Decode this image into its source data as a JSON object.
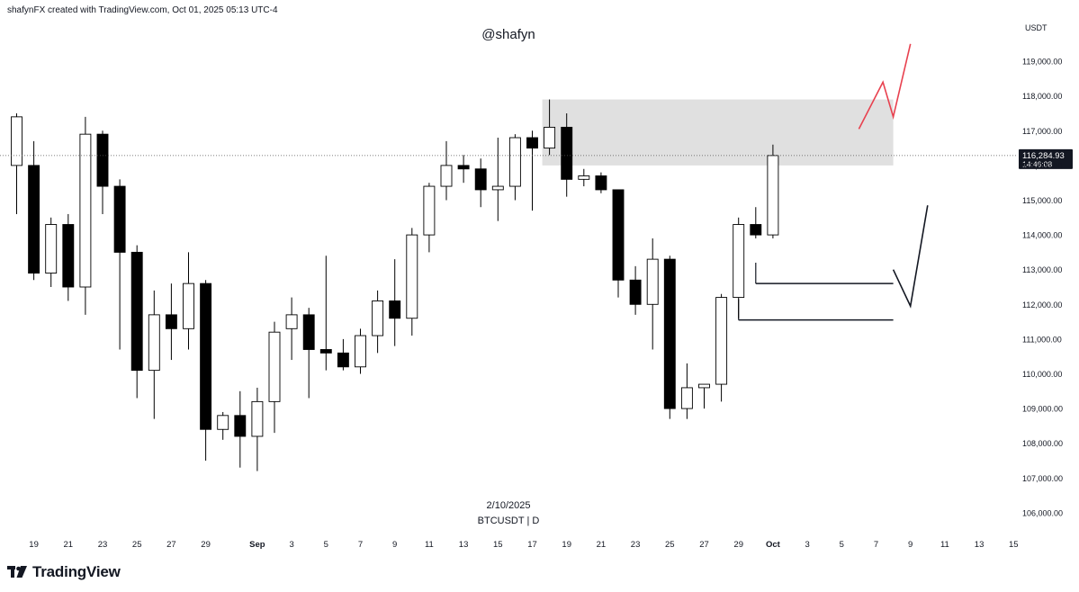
{
  "header": {
    "attribution": "shafynFX created with TradingView.com, Oct 01, 2025 05:13 UTC-4"
  },
  "watermark": "@shafyn",
  "footer": {
    "date_label": "2/10/2025",
    "symbol_label": "BTCUSDT | D"
  },
  "brand": {
    "name": "TradingView",
    "logo_icon": "tradingview-logo-icon"
  },
  "colors": {
    "up_body": "#ffffff",
    "down_body": "#000000",
    "wick": "#000000",
    "zone": "#e0e0e0",
    "projection_up": "#e8414f",
    "projection_down": "#131722",
    "price_label_bg": "#131722",
    "price_label_text": "#ffffff"
  },
  "chart_data": {
    "type": "candlestick",
    "symbol": "BTCUSDT",
    "timeframe": "D",
    "currency_label": "USDT",
    "y_axis": {
      "min": 105500,
      "max": 120500,
      "tick_values": [
        106000,
        107000,
        108000,
        109000,
        110000,
        111000,
        112000,
        113000,
        114000,
        115000,
        116000,
        117000,
        118000,
        119000
      ],
      "tick_labels": [
        "106,000.00",
        "107,000.00",
        "108,000.00",
        "109,000.00",
        "110,000.00",
        "111,000.00",
        "112,000.00",
        "113,000.00",
        "114,000.00",
        "115,000.00",
        "116,000.00",
        "117,000.00",
        "118,000.00",
        "119,000.00"
      ]
    },
    "x_axis": {
      "start_date": "2025-08-18",
      "end_date": "2025-10-15",
      "ticks": [
        {
          "date": "2025-08-19",
          "label": "19"
        },
        {
          "date": "2025-08-21",
          "label": "21"
        },
        {
          "date": "2025-08-23",
          "label": "23"
        },
        {
          "date": "2025-08-25",
          "label": "25"
        },
        {
          "date": "2025-08-27",
          "label": "27"
        },
        {
          "date": "2025-08-29",
          "label": "29"
        },
        {
          "date": "2025-09-01",
          "label": "Sep",
          "bold": true
        },
        {
          "date": "2025-09-03",
          "label": "3"
        },
        {
          "date": "2025-09-05",
          "label": "5"
        },
        {
          "date": "2025-09-07",
          "label": "7"
        },
        {
          "date": "2025-09-09",
          "label": "9"
        },
        {
          "date": "2025-09-11",
          "label": "11"
        },
        {
          "date": "2025-09-13",
          "label": "13"
        },
        {
          "date": "2025-09-15",
          "label": "15"
        },
        {
          "date": "2025-09-17",
          "label": "17"
        },
        {
          "date": "2025-09-19",
          "label": "19"
        },
        {
          "date": "2025-09-21",
          "label": "21"
        },
        {
          "date": "2025-09-23",
          "label": "23"
        },
        {
          "date": "2025-09-25",
          "label": "25"
        },
        {
          "date": "2025-09-27",
          "label": "27"
        },
        {
          "date": "2025-09-29",
          "label": "29"
        },
        {
          "date": "2025-10-01",
          "label": "Oct",
          "bold": true
        },
        {
          "date": "2025-10-03",
          "label": "3"
        },
        {
          "date": "2025-10-05",
          "label": "5"
        },
        {
          "date": "2025-10-07",
          "label": "7"
        },
        {
          "date": "2025-10-09",
          "label": "9"
        },
        {
          "date": "2025-10-11",
          "label": "11"
        },
        {
          "date": "2025-10-13",
          "label": "13"
        },
        {
          "date": "2025-10-15",
          "label": "15"
        }
      ]
    },
    "candles": [
      {
        "date": "2025-08-18",
        "open": 116000,
        "high": 117500,
        "low": 114600,
        "close": 117400
      },
      {
        "date": "2025-08-19",
        "open": 116000,
        "high": 116700,
        "low": 112700,
        "close": 112900
      },
      {
        "date": "2025-08-20",
        "open": 112900,
        "high": 114500,
        "low": 112500,
        "close": 114300
      },
      {
        "date": "2025-08-21",
        "open": 114300,
        "high": 114600,
        "low": 112100,
        "close": 112500
      },
      {
        "date": "2025-08-22",
        "open": 112500,
        "high": 117400,
        "low": 111700,
        "close": 116900
      },
      {
        "date": "2025-08-23",
        "open": 116900,
        "high": 117000,
        "low": 114600,
        "close": 115400
      },
      {
        "date": "2025-08-24",
        "open": 115400,
        "high": 115600,
        "low": 110700,
        "close": 113500
      },
      {
        "date": "2025-08-25",
        "open": 113500,
        "high": 113700,
        "low": 109300,
        "close": 110100
      },
      {
        "date": "2025-08-26",
        "open": 110100,
        "high": 112400,
        "low": 108700,
        "close": 111700
      },
      {
        "date": "2025-08-27",
        "open": 111700,
        "high": 112600,
        "low": 110400,
        "close": 111300
      },
      {
        "date": "2025-08-28",
        "open": 111300,
        "high": 113500,
        "low": 110700,
        "close": 112600
      },
      {
        "date": "2025-08-29",
        "open": 112600,
        "high": 112700,
        "low": 107500,
        "close": 108400
      },
      {
        "date": "2025-08-30",
        "open": 108400,
        "high": 108900,
        "low": 108100,
        "close": 108800
      },
      {
        "date": "2025-08-31",
        "open": 108800,
        "high": 109500,
        "low": 107300,
        "close": 108200
      },
      {
        "date": "2025-09-01",
        "open": 108200,
        "high": 109600,
        "low": 107200,
        "close": 109200
      },
      {
        "date": "2025-09-02",
        "open": 109200,
        "high": 111500,
        "low": 108300,
        "close": 111200
      },
      {
        "date": "2025-09-03",
        "open": 111300,
        "high": 112200,
        "low": 110400,
        "close": 111700
      },
      {
        "date": "2025-09-04",
        "open": 111700,
        "high": 111900,
        "low": 109300,
        "close": 110700
      },
      {
        "date": "2025-09-05",
        "open": 110700,
        "high": 113400,
        "low": 110100,
        "close": 110600
      },
      {
        "date": "2025-09-06",
        "open": 110600,
        "high": 111000,
        "low": 110100,
        "close": 110200
      },
      {
        "date": "2025-09-07",
        "open": 110200,
        "high": 111300,
        "low": 110000,
        "close": 111100
      },
      {
        "date": "2025-09-08",
        "open": 111100,
        "high": 112400,
        "low": 110600,
        "close": 112100
      },
      {
        "date": "2025-09-09",
        "open": 112100,
        "high": 113300,
        "low": 110800,
        "close": 111600
      },
      {
        "date": "2025-09-10",
        "open": 111600,
        "high": 114200,
        "low": 111100,
        "close": 114000
      },
      {
        "date": "2025-09-11",
        "open": 114000,
        "high": 115500,
        "low": 113500,
        "close": 115400
      },
      {
        "date": "2025-09-12",
        "open": 115400,
        "high": 116700,
        "low": 115000,
        "close": 116000
      },
      {
        "date": "2025-09-13",
        "open": 116000,
        "high": 116300,
        "low": 115500,
        "close": 115900
      },
      {
        "date": "2025-09-14",
        "open": 115900,
        "high": 116200,
        "low": 114800,
        "close": 115300
      },
      {
        "date": "2025-09-15",
        "open": 115300,
        "high": 116800,
        "low": 114400,
        "close": 115400
      },
      {
        "date": "2025-09-16",
        "open": 115400,
        "high": 116900,
        "low": 115000,
        "close": 116800
      },
      {
        "date": "2025-09-17",
        "open": 116800,
        "high": 117000,
        "low": 114700,
        "close": 116500
      },
      {
        "date": "2025-09-18",
        "open": 116500,
        "high": 117900,
        "low": 116300,
        "close": 117100
      },
      {
        "date": "2025-09-19",
        "open": 117100,
        "high": 117500,
        "low": 115100,
        "close": 115600
      },
      {
        "date": "2025-09-20",
        "open": 115600,
        "high": 115900,
        "low": 115400,
        "close": 115700
      },
      {
        "date": "2025-09-21",
        "open": 115700,
        "high": 115800,
        "low": 115200,
        "close": 115300
      },
      {
        "date": "2025-09-22",
        "open": 115300,
        "high": 115300,
        "low": 112200,
        "close": 112700
      },
      {
        "date": "2025-09-23",
        "open": 112700,
        "high": 113100,
        "low": 111700,
        "close": 112000
      },
      {
        "date": "2025-09-24",
        "open": 112000,
        "high": 113900,
        "low": 110700,
        "close": 113300
      },
      {
        "date": "2025-09-25",
        "open": 113300,
        "high": 113400,
        "low": 108700,
        "close": 109000
      },
      {
        "date": "2025-09-26",
        "open": 109000,
        "high": 110300,
        "low": 108700,
        "close": 109600
      },
      {
        "date": "2025-09-27",
        "open": 109600,
        "high": 109700,
        "low": 109000,
        "close": 109700
      },
      {
        "date": "2025-09-28",
        "open": 109700,
        "high": 112300,
        "low": 109200,
        "close": 112200
      },
      {
        "date": "2025-09-29",
        "open": 112200,
        "high": 114500,
        "low": 111600,
        "close": 114300
      },
      {
        "date": "2025-09-30",
        "open": 114300,
        "high": 114800,
        "low": 113900,
        "close": 114000
      },
      {
        "date": "2025-10-01",
        "open": 114000,
        "high": 116600,
        "low": 113900,
        "close": 116285
      }
    ],
    "current_price": {
      "value": 116284.93,
      "label": "116,284.93",
      "countdown": "14:46:08"
    },
    "supply_zone": {
      "from_date": "2025-09-18",
      "to_date": "2025-10-08",
      "low": 116000,
      "high": 117900
    },
    "horizontal_levels": [
      {
        "from_date": "2025-09-30",
        "to_date": "2025-10-08",
        "price": 112600
      },
      {
        "from_date": "2025-09-29",
        "to_date": "2025-10-08",
        "price": 111550
      }
    ],
    "projections": [
      {
        "name": "bullish",
        "color": "#e8414f",
        "points": [
          [
            "2025-10-06",
            117050
          ],
          [
            "2025-10-07.4",
            118400
          ],
          [
            "2025-10-08",
            117400
          ],
          [
            "2025-10-09",
            119500
          ]
        ]
      },
      {
        "name": "bearish",
        "color": "#131722",
        "points": [
          [
            "2025-10-08",
            113000
          ],
          [
            "2025-10-09",
            111950
          ],
          [
            "2025-10-10",
            114850
          ]
        ]
      }
    ]
  }
}
